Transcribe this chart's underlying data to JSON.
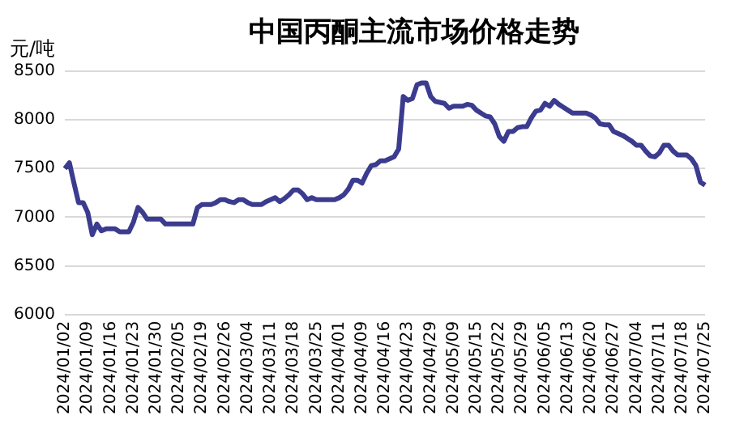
{
  "chart_data": {
    "type": "line",
    "title": "中国丙酮主流市场价格走势",
    "ylabel": "元/吨",
    "categories": [
      "2024/01/02",
      null,
      null,
      null,
      null,
      "2024/01/09",
      null,
      null,
      null,
      null,
      "2024/01/16",
      null,
      null,
      null,
      null,
      "2024/01/23",
      null,
      null,
      null,
      null,
      "2024/01/30",
      null,
      null,
      null,
      null,
      "2024/02/05",
      null,
      null,
      null,
      null,
      "2024/02/19",
      null,
      null,
      null,
      null,
      "2024/02/26",
      null,
      null,
      null,
      null,
      "2024/03/04",
      null,
      null,
      null,
      null,
      "2024/03/11",
      null,
      null,
      null,
      null,
      "2024/03/18",
      null,
      null,
      null,
      null,
      "2024/03/25",
      null,
      null,
      null,
      null,
      "2024/04/01",
      null,
      null,
      null,
      null,
      "2024/04/09",
      null,
      null,
      null,
      null,
      "2024/04/16",
      null,
      null,
      null,
      null,
      "2024/04/23",
      null,
      null,
      null,
      null,
      "2024/04/29",
      null,
      null,
      null,
      null,
      "2024/05/09",
      null,
      null,
      null,
      null,
      "2024/05/15",
      null,
      null,
      null,
      null,
      "2024/05/22",
      null,
      null,
      null,
      null,
      "2024/05/29",
      null,
      null,
      null,
      null,
      "2024/06/05",
      null,
      null,
      null,
      null,
      "2024/06/13",
      null,
      null,
      null,
      null,
      "2024/06/20",
      null,
      null,
      null,
      null,
      "2024/06/27",
      null,
      null,
      null,
      null,
      "2024/07/04",
      null,
      null,
      null,
      null,
      "2024/07/11",
      null,
      null,
      null,
      null,
      "2024/07/18",
      null,
      null,
      null,
      null,
      "2024/07/25"
    ],
    "series": [
      {
        "color": "#3b3b8f",
        "values": [
          7500,
          7560,
          7350,
          7150,
          7150,
          7050,
          6820,
          6930,
          6860,
          6880,
          6880,
          6880,
          6850,
          6850,
          6850,
          6950,
          7100,
          7050,
          6980,
          6980,
          6980,
          6980,
          6930,
          6930,
          6930,
          6930,
          6930,
          6930,
          6930,
          7100,
          7130,
          7130,
          7130,
          7150,
          7180,
          7180,
          7160,
          7150,
          7180,
          7180,
          7150,
          7130,
          7130,
          7130,
          7160,
          7180,
          7200,
          7160,
          7190,
          7230,
          7280,
          7280,
          7240,
          7180,
          7200,
          7180,
          7180,
          7180,
          7180,
          7180,
          7200,
          7230,
          7290,
          7380,
          7380,
          7350,
          7450,
          7530,
          7540,
          7580,
          7580,
          7600,
          7620,
          7700,
          8240,
          8200,
          8220,
          8360,
          8380,
          8380,
          8240,
          8190,
          8180,
          8170,
          8120,
          8140,
          8140,
          8140,
          8160,
          8150,
          8100,
          8070,
          8040,
          8030,
          7960,
          7830,
          7780,
          7880,
          7880,
          7920,
          7930,
          7930,
          8020,
          8090,
          8100,
          8170,
          8140,
          8200,
          8160,
          8130,
          8100,
          8070,
          8070,
          8070,
          8070,
          8050,
          8020,
          7960,
          7950,
          7950,
          7880,
          7860,
          7840,
          7810,
          7780,
          7740,
          7740,
          7680,
          7630,
          7620,
          7660,
          7740,
          7740,
          7680,
          7640,
          7640,
          7640,
          7600,
          7530,
          7360,
          7330
        ]
      }
    ],
    "ylim": [
      6000,
      8500
    ],
    "yticks": [
      6000,
      6500,
      7000,
      7500,
      8000,
      8500
    ],
    "grid": "y",
    "legend": false,
    "marker": "none",
    "line_style": "solid"
  }
}
